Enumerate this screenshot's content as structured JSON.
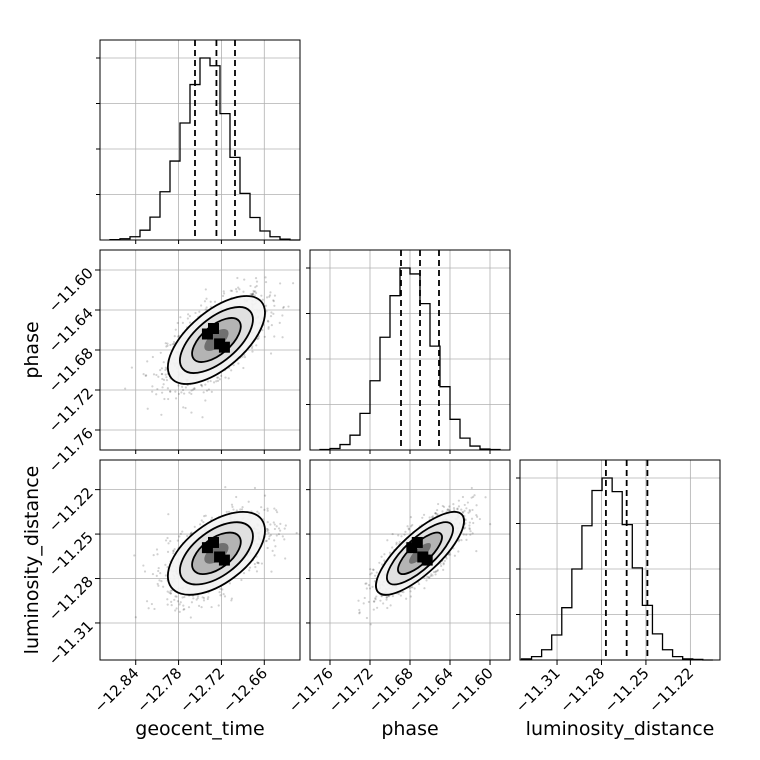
{
  "chart_data": {
    "type": "corner",
    "parameters": [
      {
        "name": "geocent_time",
        "range": [
          -12.89,
          -12.61
        ],
        "ticks": [
          "-12.84",
          "-12.78",
          "-12.72",
          "-12.66"
        ],
        "quantiles": [
          -12.757,
          -12.727,
          -12.701
        ]
      },
      {
        "name": "phase",
        "range": [
          -11.78,
          -11.58
        ],
        "ticks": [
          "-11.76",
          "-11.72",
          "-11.68",
          "-11.64",
          "-11.60"
        ],
        "quantiles": [
          -11.689,
          -11.67,
          -11.651
        ]
      },
      {
        "name": "luminosity_distance",
        "range": [
          -11.335,
          -11.2
        ],
        "ticks": [
          "-11.31",
          "-11.28",
          "-11.25",
          "-11.22"
        ],
        "quantiles": [
          -11.277,
          -11.263,
          -11.249
        ]
      }
    ],
    "histograms": [
      {
        "param": "geocent_time",
        "bins": [
          -12.869,
          -12.855,
          -12.841,
          -12.827,
          -12.813,
          -12.799,
          -12.785,
          -12.771,
          -12.757,
          -12.743,
          -12.729,
          -12.715,
          -12.701,
          -12.687,
          -12.673,
          -12.659,
          -12.645,
          -12.631,
          -12.617
        ],
        "counts": [
          1,
          3,
          8,
          24,
          56,
          118,
          193,
          286,
          380,
          445,
          426,
          309,
          202,
          114,
          55,
          22,
          8,
          2,
          0
        ]
      },
      {
        "param": "phase",
        "bins": [
          -11.765,
          -11.755,
          -11.745,
          -11.735,
          -11.725,
          -11.715,
          -11.705,
          -11.695,
          -11.685,
          -11.675,
          -11.665,
          -11.655,
          -11.645,
          -11.635,
          -11.625,
          -11.615,
          -11.605,
          -11.595
        ],
        "counts": [
          1,
          3,
          11,
          30,
          74,
          140,
          228,
          312,
          368,
          356,
          296,
          210,
          128,
          62,
          24,
          8,
          2,
          1
        ]
      },
      {
        "param": "luminosity_distance",
        "bins": [
          -11.3306,
          -11.3238,
          -11.317,
          -11.3102,
          -11.3034,
          -11.2966,
          -11.2898,
          -11.283,
          -11.2762,
          -11.2694,
          -11.2626,
          -11.2558,
          -11.249,
          -11.2422,
          -11.2354,
          -11.2286,
          -11.2218,
          -11.215,
          -11.2082
        ],
        "counts": [
          2,
          6,
          18,
          44,
          92,
          160,
          236,
          298,
          320,
          296,
          238,
          162,
          96,
          46,
          18,
          6,
          2,
          1,
          0
        ]
      }
    ],
    "pair_panels": [
      {
        "x": "geocent_time",
        "y": "phase",
        "center": [
          -12.727,
          -11.67
        ],
        "sigma": [
          0.034,
          0.022
        ],
        "correlation": 0.62
      },
      {
        "x": "geocent_time",
        "y": "luminosity_distance",
        "center": [
          -12.727,
          -11.263
        ],
        "sigma": [
          0.034,
          0.014
        ],
        "correlation": 0.55
      },
      {
        "x": "phase",
        "y": "luminosity_distance",
        "center": [
          -11.67,
          -11.263
        ],
        "sigma": [
          0.022,
          0.014
        ],
        "correlation": 0.78
      }
    ],
    "contour_levels_sigma": [
      0.5,
      1.0,
      1.5,
      2.0
    ],
    "grid": true,
    "colors": {
      "axes": "#000000",
      "grid": "#b0b0b0",
      "points": "#000000",
      "quantile_lines": "#000000"
    }
  }
}
